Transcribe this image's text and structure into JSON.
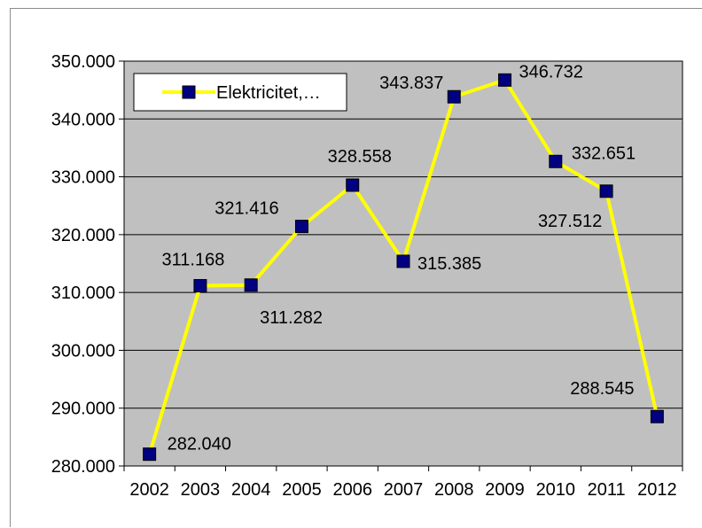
{
  "chart_data": {
    "type": "line",
    "categories": [
      "2002",
      "2003",
      "2004",
      "2005",
      "2006",
      "2007",
      "2008",
      "2009",
      "2010",
      "2011",
      "2012"
    ],
    "series": [
      {
        "name": "Elektricitet,…",
        "values": [
          282040,
          311168,
          311282,
          321416,
          328558,
          315385,
          343837,
          346732,
          332651,
          327512,
          288545
        ],
        "data_labels": [
          "282.040",
          "311.168",
          "311.282",
          "321.416",
          "328.558",
          "315.385",
          "343.837",
          "346.732",
          "332.651",
          "327.512",
          "288.545"
        ],
        "line_color": "#ffff00",
        "marker_color": "#000080"
      }
    ],
    "yticks": [
      280000,
      290000,
      300000,
      310000,
      320000,
      330000,
      340000,
      350000
    ],
    "ytick_labels": [
      "280.000",
      "290.000",
      "300.000",
      "310.000",
      "320.000",
      "330.000",
      "340.000",
      "350.000"
    ],
    "ylim": [
      280000,
      350000
    ],
    "grid": true,
    "plot_background": "#c0c0c0",
    "legend_position": "top-left-inside",
    "title": "",
    "xlabel": "",
    "ylabel": ""
  }
}
